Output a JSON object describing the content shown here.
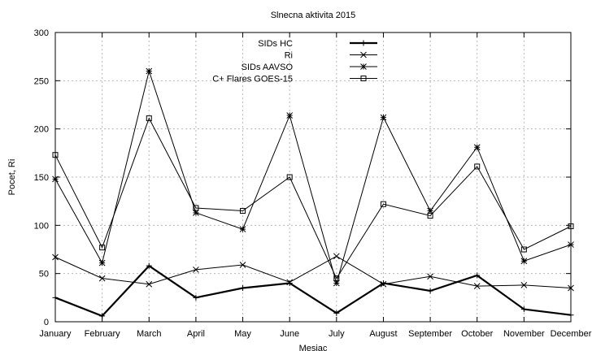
{
  "chart_data": {
    "type": "line",
    "title": "Slnecna aktivita 2015",
    "xlabel": "Mesiac",
    "ylabel": "Pocet, Ri",
    "ylim": [
      0,
      300
    ],
    "yticks": [
      0,
      50,
      100,
      150,
      200,
      250,
      300
    ],
    "grid": true,
    "legend_position": "top-center",
    "categories": [
      "January",
      "February",
      "March",
      "April",
      "May",
      "June",
      "July",
      "August",
      "September",
      "October",
      "November",
      "December"
    ],
    "series": [
      {
        "name": "SIDs HC",
        "marker": "plus",
        "width": 2.2,
        "values": [
          25,
          6,
          58,
          25,
          35,
          40,
          9,
          40,
          32,
          48,
          13,
          7
        ]
      },
      {
        "name": "Ri",
        "marker": "cross",
        "width": 1,
        "values": [
          67,
          45,
          39,
          54,
          59,
          41,
          68,
          39,
          47,
          37,
          38,
          35
        ]
      },
      {
        "name": "SIDs AAVSO",
        "marker": "star",
        "width": 1,
        "values": [
          148,
          61,
          260,
          113,
          96,
          214,
          40,
          212,
          115,
          181,
          63,
          80
        ]
      },
      {
        "name": "C+ Flares GOES-15",
        "marker": "square",
        "width": 1,
        "values": [
          173,
          77,
          211,
          118,
          115,
          150,
          45,
          122,
          110,
          161,
          75,
          99
        ]
      }
    ]
  }
}
